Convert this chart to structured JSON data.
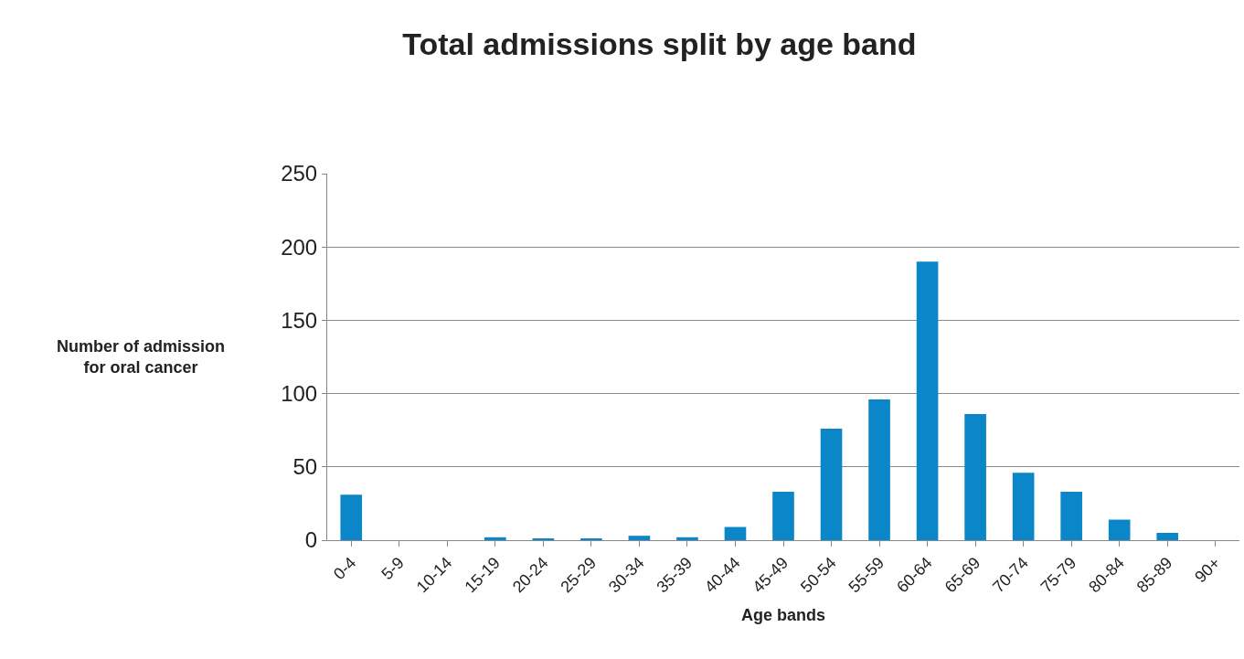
{
  "chart_data": {
    "type": "bar",
    "title": "Total admissions split by age band",
    "xlabel": "Age bands",
    "ylabel": "Number of admission\nfor oral cancer",
    "categories": [
      "0-4",
      "5-9",
      "10-14",
      "15-19",
      "20-24",
      "25-29",
      "30-34",
      "35-39",
      "40-44",
      "45-49",
      "50-54",
      "55-59",
      "60-64",
      "65-69",
      "70-74",
      "75-79",
      "80-84",
      "85-89",
      "90+"
    ],
    "values": [
      31,
      0,
      0,
      2,
      1,
      1,
      3,
      2,
      9,
      33,
      76,
      96,
      190,
      86,
      46,
      33,
      14,
      5,
      0
    ],
    "color": "#0b87c9",
    "ylim": [
      0,
      250
    ],
    "yticks": [
      0,
      50,
      100,
      150,
      200,
      250
    ],
    "grid": "y",
    "legend": false
  }
}
